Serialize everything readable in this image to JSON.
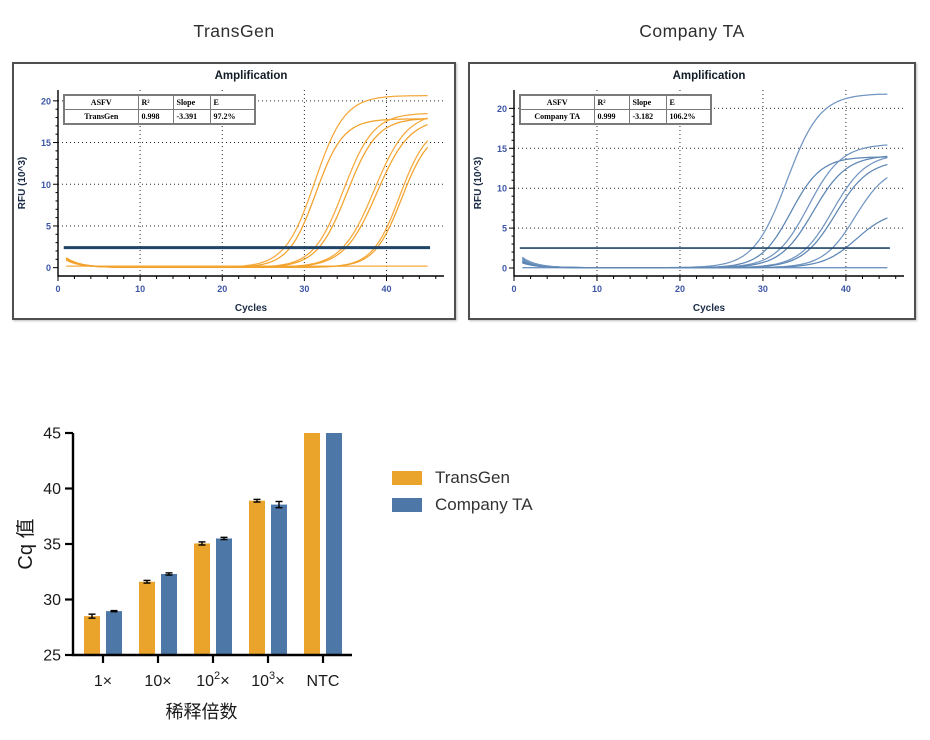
{
  "panels": {
    "left": {
      "title": "TransGen"
    },
    "right": {
      "title": "Company TA"
    }
  },
  "legend": {
    "items": [
      {
        "label": "TransGen",
        "color": "#EAA42C"
      },
      {
        "label": "Company TA",
        "color": "#4C77A7"
      }
    ]
  },
  "chart_data": [
    {
      "id": "amp_transgen",
      "type": "line",
      "title": "Amplification",
      "xlabel": "Cycles",
      "ylabel": "RFU (10^3)",
      "xlim": [
        0,
        47
      ],
      "ylim": [
        -1,
        21.3
      ],
      "xticks": [
        0,
        10,
        20,
        30,
        40
      ],
      "yticks": [
        0,
        5,
        10,
        15,
        20
      ],
      "grid": true,
      "threshold": 2.4,
      "threshold_width": 3,
      "threshold_color": "#1F4468",
      "curve_colors": [
        "#F5A93C",
        "#F2A22A"
      ],
      "ntc_level": 0.18,
      "table": {
        "headers": [
          "ASFV",
          "R²",
          "Slope",
          "E"
        ],
        "row": [
          "TransGen",
          "0.998",
          "-3.391",
          "97.2%"
        ]
      },
      "curves": [
        {
          "cq": 27.6,
          "plateau": 20.6,
          "k": 0.55,
          "start": 1.15
        },
        {
          "cq": 28.3,
          "plateau": 17.8,
          "k": 0.6,
          "start": 1.0
        },
        {
          "cq": 31.3,
          "plateau": 18.5,
          "k": 0.55,
          "start": 0.95
        },
        {
          "cq": 31.8,
          "plateau": 17.9,
          "k": 0.55,
          "start": 1.1
        },
        {
          "cq": 34.7,
          "plateau": 18.6,
          "k": 0.5,
          "start": 0.85
        },
        {
          "cq": 35.1,
          "plateau": 17.9,
          "k": 0.5,
          "start": 1.05
        },
        {
          "cq": 38.6,
          "plateau": 17.2,
          "k": 0.6,
          "start": 0.9
        },
        {
          "cq": 38.9,
          "plateau": 16.6,
          "k": 0.6,
          "start": 1.0
        }
      ]
    },
    {
      "id": "amp_company_ta",
      "type": "line",
      "title": "Amplification",
      "xlabel": "Cycles",
      "ylabel": "RFU (10^3)",
      "xlim": [
        0,
        47
      ],
      "ylim": [
        -1,
        22.3
      ],
      "xticks": [
        0,
        10,
        20,
        30,
        40
      ],
      "yticks": [
        0,
        5,
        10,
        15,
        20
      ],
      "grid": true,
      "threshold": 2.5,
      "threshold_width": 1.6,
      "threshold_color": "#1F4468",
      "curve_colors": [
        "#7195C1",
        "#5D86B4"
      ],
      "ntc_level": 0.04,
      "table": {
        "headers": [
          "ASFV",
          "R²",
          "Slope",
          "E"
        ],
        "row": [
          "Company TA",
          "0.999",
          "-3.182",
          "106.2%"
        ]
      },
      "curves": [
        {
          "cq": 28.8,
          "plateau": 21.8,
          "k": 0.5,
          "start": 1.3
        },
        {
          "cq": 30.6,
          "plateau": 13.9,
          "k": 0.55,
          "start": 0.9
        },
        {
          "cq": 32.2,
          "plateau": 15.5,
          "k": 0.5,
          "start": 1.1
        },
        {
          "cq": 33.0,
          "plateau": 14.1,
          "k": 0.5,
          "start": 0.7
        },
        {
          "cq": 35.3,
          "plateau": 14.3,
          "k": 0.5,
          "start": 1.0
        },
        {
          "cq": 35.8,
          "plateau": 13.5,
          "k": 0.5,
          "start": 0.8
        },
        {
          "cq": 38.4,
          "plateau": 12.8,
          "k": 0.52,
          "start": 1.2
        },
        {
          "cq": 40.0,
          "plateau": 7.2,
          "k": 0.5,
          "start": 0.6
        }
      ]
    },
    {
      "id": "cq_bars",
      "type": "bar",
      "ylabel": "Cq 值",
      "xlabel": "稀释倍数",
      "ylim": [
        25,
        45
      ],
      "yticks": [
        25,
        30,
        35,
        40,
        45
      ],
      "categories": [
        {
          "main": "1",
          "sup": "",
          "tail": "×"
        },
        {
          "main": "10",
          "sup": "",
          "tail": "×"
        },
        {
          "main": "10",
          "sup": "2",
          "tail": "×"
        },
        {
          "main": "10",
          "sup": "3",
          "tail": "×"
        },
        {
          "main": "NTC",
          "sup": "",
          "tail": ""
        }
      ],
      "series": [
        {
          "name": "TransGen",
          "color": "#EAA42C",
          "values": [
            28.5,
            31.6,
            35.05,
            38.9,
            45
          ],
          "errors": [
            0.18,
            0.12,
            0.14,
            0.12,
            0
          ]
        },
        {
          "name": "Company TA",
          "color": "#4C77A7",
          "values": [
            28.95,
            32.3,
            35.5,
            38.55,
            45
          ],
          "errors": [
            0.05,
            0.1,
            0.1,
            0.28,
            0
          ]
        }
      ]
    }
  ]
}
